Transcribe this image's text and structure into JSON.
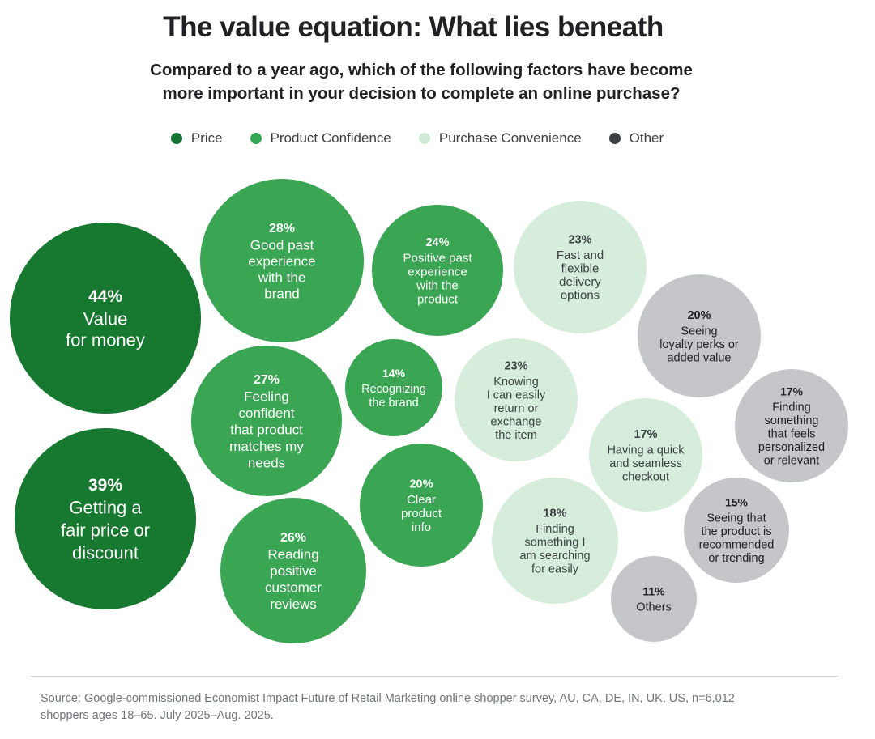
{
  "title": "The value equation: What lies beneath",
  "subtitle_line1": "Compared to a year ago, which of the following factors have become",
  "subtitle_line2": "more important in your decision to complete an online purchase?",
  "legend": [
    {
      "label": "Price",
      "color": "#137333"
    },
    {
      "label": "Product Confidence",
      "color": "#34a853"
    },
    {
      "label": "Purchase Convenience",
      "color": "#ceead6"
    },
    {
      "label": "Other",
      "color": "#3c4043"
    }
  ],
  "source_line1": "Source: Google-commissioned Economist Impact Future of Retail Marketing online shopper survey, AU, CA, DE, IN, UK, US, n=6,012",
  "source_line2": "shoppers ages 18–65. July 2025–Aug. 2025.",
  "chart_data": {
    "type": "bubble",
    "unit": "%",
    "categories": [
      "Price",
      "Product Confidence",
      "Purchase Convenience",
      "Other"
    ],
    "category_colors": {
      "Price": "#17792f",
      "Product Confidence": "#3aa552",
      "Purchase Convenience": "#d6eddb",
      "Other": "#c4c6ca"
    },
    "items": [
      {
        "value": 44,
        "label": [
          "Value",
          "for money"
        ],
        "category": "Price"
      },
      {
        "value": 39,
        "label": [
          "Getting a",
          "fair price or",
          "discount"
        ],
        "category": "Price"
      },
      {
        "value": 28,
        "label": [
          "Good past",
          "experience",
          "with the",
          "brand"
        ],
        "category": "Product Confidence"
      },
      {
        "value": 27,
        "label": [
          "Feeling",
          "confident",
          "that product",
          "matches my",
          "needs"
        ],
        "category": "Product Confidence"
      },
      {
        "value": 26,
        "label": [
          "Reading",
          "positive",
          "customer",
          "reviews"
        ],
        "category": "Product Confidence"
      },
      {
        "value": 24,
        "label": [
          "Positive past",
          "experience",
          "with the",
          "product"
        ],
        "category": "Product Confidence"
      },
      {
        "value": 14,
        "label": [
          "Recognizing",
          "the brand"
        ],
        "category": "Product Confidence"
      },
      {
        "value": 20,
        "label": [
          "Clear",
          "product",
          "info"
        ],
        "category": "Product Confidence"
      },
      {
        "value": 23,
        "label": [
          "Fast and",
          "flexible",
          "delivery",
          "options"
        ],
        "category": "Purchase Convenience"
      },
      {
        "value": 23,
        "label": [
          "Knowing",
          "I can easily",
          "return or",
          "exchange",
          "the item"
        ],
        "category": "Purchase Convenience"
      },
      {
        "value": 17,
        "label": [
          "Having a quick",
          "and seamless",
          "checkout"
        ],
        "category": "Purchase Convenience"
      },
      {
        "value": 18,
        "label": [
          "Finding",
          "something I",
          "am searching",
          "for easily"
        ],
        "category": "Purchase Convenience"
      },
      {
        "value": 20,
        "label": [
          "Seeing",
          "loyalty perks or",
          "added value"
        ],
        "category": "Other"
      },
      {
        "value": 17,
        "label": [
          "Finding",
          "something",
          "that feels",
          "personalized",
          "or relevant"
        ],
        "category": "Other"
      },
      {
        "value": 15,
        "label": [
          "Seeing that",
          "the product is",
          "recommended",
          "or trending"
        ],
        "category": "Other"
      },
      {
        "value": 11,
        "label": [
          "Others"
        ],
        "category": "Other"
      }
    ]
  }
}
